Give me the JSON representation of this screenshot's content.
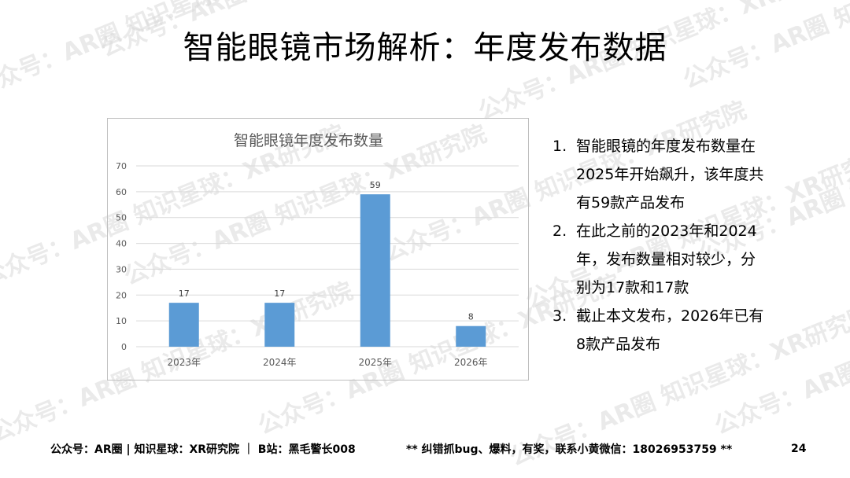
{
  "slide": {
    "title": "智能眼镜市场解析：年度发布数据",
    "page_number": "24"
  },
  "watermark": {
    "text": "公众号：AR圈 知识星球：XR研究院",
    "color": "#d9d9d9"
  },
  "chart_data": {
    "type": "bar",
    "title": "智能眼镜年度发布数量",
    "categories": [
      "2023年",
      "2024年",
      "2025年",
      "2026年"
    ],
    "values": [
      17,
      17,
      59,
      8
    ],
    "data_labels": [
      "17",
      "17",
      "59",
      "8"
    ],
    "xlabel": "",
    "ylabel": "",
    "ylim": [
      0,
      70
    ],
    "yticks": [
      0,
      10,
      20,
      30,
      40,
      50,
      60,
      70
    ],
    "grid": true,
    "legend": "none",
    "bar_color": "#5b9bd5",
    "grid_color": "#d9d9d9"
  },
  "description": [
    {
      "num": "1.",
      "text": "智能眼镜的年度发布数量在2025年开始飙升，该年度共有59款产品发布"
    },
    {
      "num": "2.",
      "text": "在此之前的2023年和2024年，发布数量相对较少，分别为17款和17款"
    },
    {
      "num": "3.",
      "text": "截止本文发布，2026年已有8款产品发布"
    }
  ],
  "footer": {
    "left": "公众号：AR圈 | 知识星球：XR研究院 ｜ B站：黑毛警长008",
    "middle": "** 纠错抓bug、爆料，有奖，联系小黄微信：18026953759 **"
  }
}
